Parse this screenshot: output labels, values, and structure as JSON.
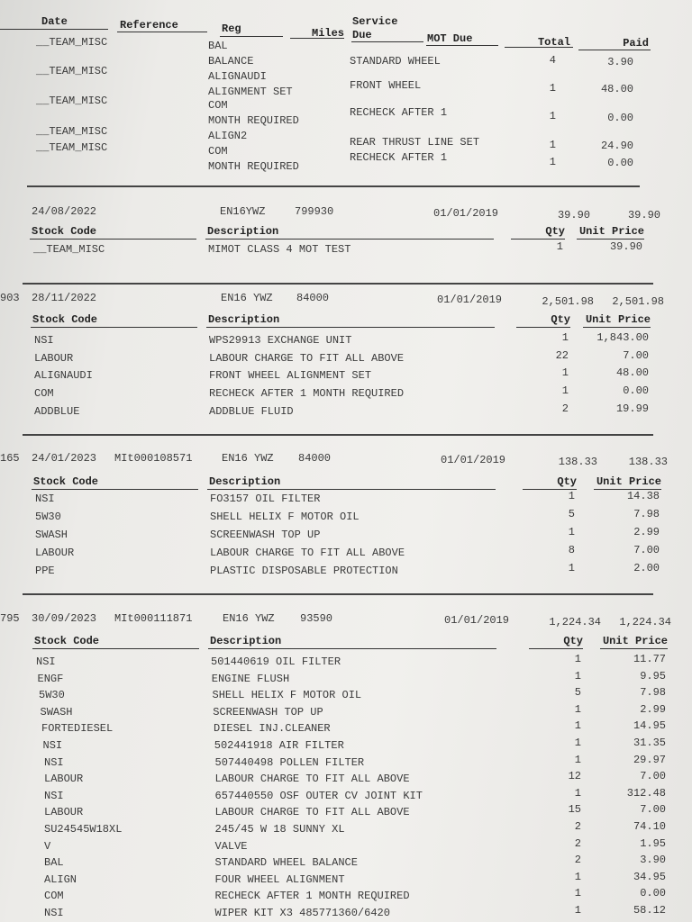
{
  "top": {
    "headers": {
      "date": "Date",
      "reference": "Reference",
      "reg": "Reg",
      "miles": "Miles",
      "service_due": "Service\nDue",
      "mot_due": "MOT Due",
      "total": "Total",
      "paid": "Paid"
    },
    "rows": [
      {
        "code": "__TEAM_MISC",
        "reg_lines": [
          "BAL",
          "BALANCE"
        ],
        "service": "STANDARD WHEEL",
        "total": "4",
        "paid": "3.90"
      },
      {
        "code": "__TEAM_MISC",
        "reg_lines": [
          "ALIGNAUDI",
          "ALIGNMENT SET"
        ],
        "service": "FRONT WHEEL",
        "total": "1",
        "paid": "48.00"
      },
      {
        "code": "__TEAM_MISC",
        "reg_lines": [
          "COM",
          "MONTH REQUIRED"
        ],
        "service": "RECHECK AFTER 1",
        "total": "1",
        "paid": "0.00"
      },
      {
        "code": "__TEAM_MISC",
        "reg_lines": [
          "ALIGN2"
        ],
        "service": "REAR THRUST LINE SET",
        "total": "1",
        "paid": "24.90"
      },
      {
        "code": "__TEAM_MISC",
        "reg_lines": [
          "COM",
          "MONTH REQUIRED"
        ],
        "service": "RECHECK AFTER 1",
        "total": "1",
        "paid": "0.00"
      }
    ]
  },
  "col_headers": {
    "stock_code": "Stock Code",
    "description": "Description",
    "qty": "Qty",
    "unit_price": "Unit Price"
  },
  "invoices": [
    {
      "prefix": "",
      "date": "24/08/2022",
      "reference": "",
      "reg": "EN16YWZ",
      "miles": "799930",
      "mot_due": "01/01/2019",
      "total": "39.90",
      "paid": "39.90",
      "items": [
        {
          "code": "__TEAM_MISC",
          "description": "MIMOT          CLASS 4 MOT TEST",
          "qty": "1",
          "price": "39.90"
        }
      ]
    },
    {
      "prefix": "903",
      "date": "28/11/2022",
      "reference": "",
      "reg": "EN16 YWZ",
      "miles": "84000",
      "mot_due": "01/01/2019",
      "total": "2,501.98",
      "paid": "2,501.98",
      "items": [
        {
          "code": "NSI",
          "description": "WPS29913 EXCHANGE UNIT",
          "qty": "1",
          "price": "1,843.00"
        },
        {
          "code": "LABOUR",
          "description": "LABOUR CHARGE TO FIT ALL ABOVE",
          "qty": "22",
          "price": "7.00"
        },
        {
          "code": "ALIGNAUDI",
          "description": "FRONT WHEEL ALIGNMENT SET",
          "qty": "1",
          "price": "48.00"
        },
        {
          "code": "COM",
          "description": "RECHECK AFTER 1 MONTH REQUIRED",
          "qty": "1",
          "price": "0.00"
        },
        {
          "code": "ADDBLUE",
          "description": "ADDBLUE FLUID",
          "qty": "2",
          "price": "19.99"
        }
      ]
    },
    {
      "prefix": "165",
      "date": "24/01/2023",
      "reference": "MIt000108571",
      "reg": "EN16  YWZ",
      "miles": "84000",
      "mot_due": "01/01/2019",
      "total": "138.33",
      "paid": "138.33",
      "items": [
        {
          "code": "NSI",
          "description": "FO3157 OIL FILTER",
          "qty": "1",
          "price": "14.38"
        },
        {
          "code": "5W30",
          "description": "SHELL HELIX F MOTOR OIL",
          "qty": "5",
          "price": "7.98"
        },
        {
          "code": "SWASH",
          "description": "SCREENWASH TOP UP",
          "qty": "1",
          "price": "2.99"
        },
        {
          "code": "LABOUR",
          "description": "LABOUR CHARGE TO FIT ALL ABOVE",
          "qty": "8",
          "price": "7.00"
        },
        {
          "code": "PPE",
          "description": "PLASTIC DISPOSABLE PROTECTION",
          "qty": "1",
          "price": "2.00"
        }
      ]
    },
    {
      "prefix": "795",
      "date": "30/09/2023",
      "reference": "MIt000111871",
      "reg": "EN16 YWZ",
      "miles": "93590",
      "mot_due": "01/01/2019",
      "total": "1,224.34",
      "paid": "1,224.34",
      "items": [
        {
          "code": "NSI",
          "description": "501440619 OIL FILTER",
          "qty": "1",
          "price": "11.77"
        },
        {
          "code": "ENGF",
          "description": "ENGINE FLUSH",
          "qty": "1",
          "price": "9.95"
        },
        {
          "code": "5W30",
          "description": "SHELL HELIX F MOTOR OIL",
          "qty": "5",
          "price": "7.98"
        },
        {
          "code": "SWASH",
          "description": "SCREENWASH TOP UP",
          "qty": "1",
          "price": "2.99"
        },
        {
          "code": "FORTEDIESEL",
          "description": "DIESEL INJ.CLEANER",
          "qty": "1",
          "price": "14.95"
        },
        {
          "code": "NSI",
          "description": "502441918 AIR FILTER",
          "qty": "1",
          "price": "31.35"
        },
        {
          "code": "NSI",
          "description": "507440498 POLLEN FILTER",
          "qty": "1",
          "price": "29.97"
        },
        {
          "code": "LABOUR",
          "description": "LABOUR CHARGE TO FIT ALL ABOVE",
          "qty": "12",
          "price": "7.00"
        },
        {
          "code": "NSI",
          "description": "657440550 OSF OUTER CV JOINT KIT",
          "qty": "1",
          "price": "312.48"
        },
        {
          "code": "LABOUR",
          "description": "LABOUR CHARGE TO FIT ALL ABOVE",
          "qty": "15",
          "price": "7.00"
        },
        {
          "code": "SU24545W18XL",
          "description": "245/45 W 18 SUNNY XL",
          "qty": "2",
          "price": "74.10"
        },
        {
          "code": "V",
          "description": "VALVE",
          "qty": "2",
          "price": "1.95"
        },
        {
          "code": "BAL",
          "description": "STANDARD WHEEL BALANCE",
          "qty": "2",
          "price": "3.90"
        },
        {
          "code": "ALIGN",
          "description": "FOUR WHEEL ALIGNMENT",
          "qty": "1",
          "price": "34.95"
        },
        {
          "code": "COM",
          "description": "RECHECK AFTER 1 MONTH REQUIRED",
          "qty": "1",
          "price": "0.00"
        },
        {
          "code": "NSI",
          "description": "WIPER KIT X3 485771360/6420",
          "qty": "1",
          "price": "58.12"
        }
      ]
    }
  ]
}
